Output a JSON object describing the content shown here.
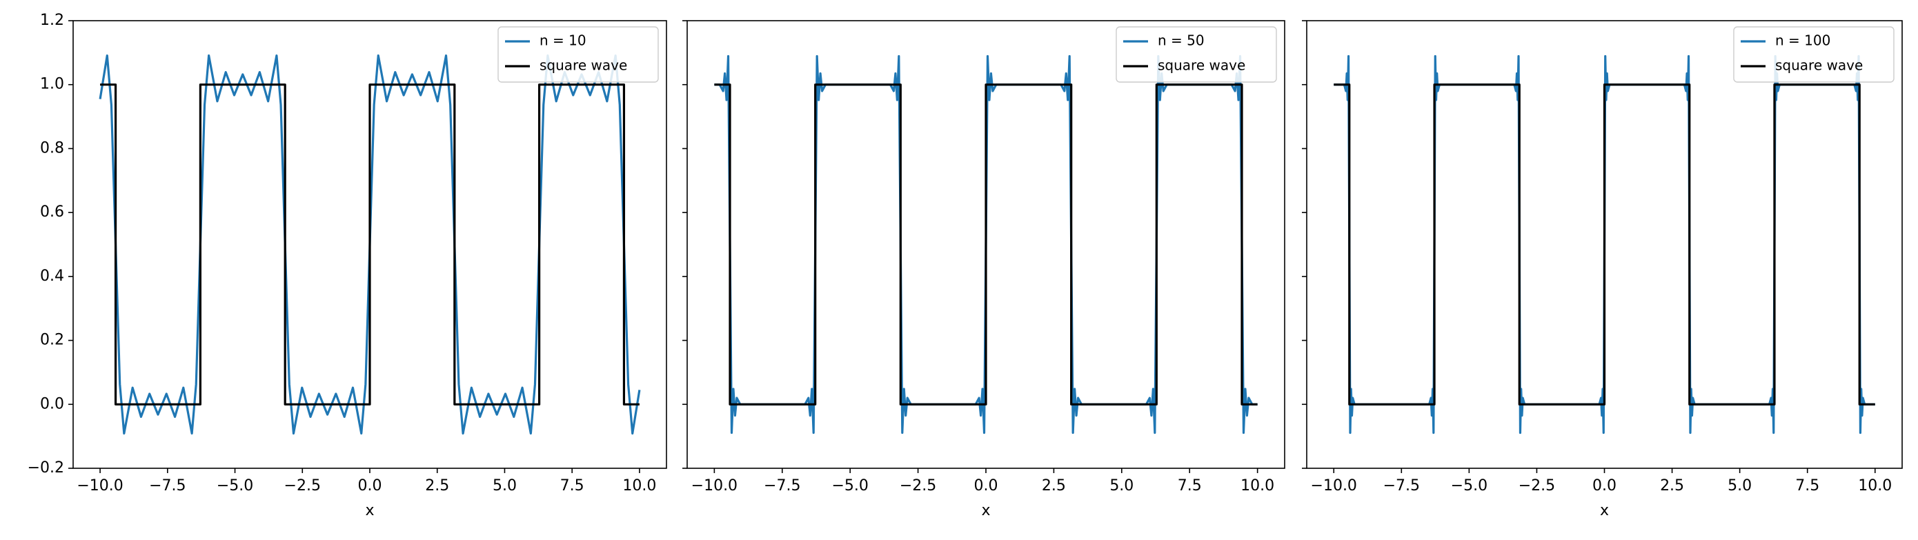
{
  "chart_data": [
    {
      "type": "line",
      "xlabel": "x",
      "xlim": [
        -11,
        11
      ],
      "ylim": [
        -0.2,
        1.2
      ],
      "xticks": [
        {
          "value": -10,
          "label": "−10.0"
        },
        {
          "value": -7.5,
          "label": "−7.5"
        },
        {
          "value": -5,
          "label": "−5.0"
        },
        {
          "value": -2.5,
          "label": "−2.5"
        },
        {
          "value": 0,
          "label": "0.0"
        },
        2.5,
        {
          "value": 5,
          "label": "5.0"
        },
        7.5,
        {
          "value": 10,
          "label": "10.0"
        }
      ],
      "yticks": [
        {
          "value": -0.2,
          "label": "−0.2"
        },
        {
          "value": 0,
          "label": "0.0"
        },
        0.2,
        0.4,
        0.6,
        0.8,
        {
          "value": 1,
          "label": "1.0"
        },
        1.2
      ],
      "ytick_labels": true,
      "legend": "upper right",
      "series": [
        {
          "name": "n = 10",
          "color": "#1f77b4",
          "x": [
            -10,
            -9.739,
            -9.582,
            -9.425,
            -9.268,
            -9.111,
            -8.796,
            -8.482,
            -8.168,
            -7.854,
            -7.54,
            -7.226,
            -6.912,
            -6.597,
            -6.44,
            -6.283,
            -6.126,
            -5.969,
            -5.655,
            -5.341,
            -5.027,
            -4.712,
            -4.398,
            -4.084,
            -3.77,
            -3.456,
            -3.299,
            -3.142,
            -2.985,
            -2.827,
            -2.513,
            -2.199,
            -1.885,
            -1.571,
            -1.257,
            -0.942,
            -0.628,
            -0.314,
            -0.157,
            0,
            0.157,
            0.314,
            0.628,
            0.942,
            1.257,
            1.571,
            1.885,
            2.199,
            2.513,
            2.827,
            2.985,
            3.142,
            3.299,
            3.456,
            3.77,
            4.084,
            4.398,
            4.712,
            5.027,
            5.341,
            5.655,
            5.969,
            6.126,
            6.283,
            6.44,
            6.597,
            6.912,
            7.226,
            7.54,
            7.854,
            8.168,
            8.482,
            8.796,
            9.111,
            9.268,
            9.425,
            9.582,
            9.739,
            10
          ],
          "values": [
            0.955,
            1.091,
            0.937,
            0.5,
            0.063,
            -0.091,
            0.052,
            -0.039,
            0.033,
            -0.032,
            0.033,
            -0.039,
            0.052,
            -0.091,
            0.063,
            0.5,
            0.937,
            1.091,
            0.948,
            1.039,
            0.967,
            1.032,
            0.967,
            1.039,
            0.948,
            1.091,
            0.937,
            0.5,
            0.063,
            -0.091,
            0.052,
            -0.039,
            0.033,
            -0.032,
            0.033,
            -0.039,
            0.052,
            -0.091,
            0.063,
            0.5,
            0.937,
            1.091,
            0.948,
            1.039,
            0.967,
            1.032,
            0.967,
            1.039,
            0.948,
            1.091,
            0.937,
            0.5,
            0.063,
            -0.091,
            0.052,
            -0.039,
            0.033,
            -0.032,
            0.033,
            -0.039,
            0.052,
            -0.091,
            0.063,
            0.5,
            0.937,
            1.091,
            0.948,
            1.039,
            0.967,
            1.032,
            0.967,
            1.039,
            0.948,
            1.091,
            0.937,
            0.5,
            0.063,
            -0.091,
            0.045
          ]
        },
        {
          "name": "square wave",
          "color": "#000000",
          "x": [
            -10,
            -9.425,
            -9.425,
            -6.283,
            -6.283,
            -3.142,
            -3.142,
            0,
            0,
            3.142,
            3.142,
            6.283,
            6.283,
            9.425,
            9.425,
            10
          ],
          "values": [
            1,
            1,
            0,
            0,
            1,
            1,
            0,
            0,
            1,
            1,
            0,
            0,
            1,
            1,
            0,
            0
          ]
        }
      ]
    },
    {
      "type": "line",
      "xlabel": "x",
      "xlim": [
        -11,
        11
      ],
      "ylim": [
        -0.2,
        1.2
      ],
      "xticks": [
        {
          "value": -10,
          "label": "−10.0"
        },
        {
          "value": -7.5,
          "label": "−7.5"
        },
        {
          "value": -5,
          "label": "−5.0"
        },
        {
          "value": -2.5,
          "label": "−2.5"
        },
        {
          "value": 0,
          "label": "0.0"
        },
        2.5,
        {
          "value": 5,
          "label": "5.0"
        },
        7.5,
        {
          "value": 10,
          "label": "10.0"
        }
      ],
      "yticks": [
        -0.2,
        0,
        0.2,
        0.4,
        0.6,
        0.8,
        1,
        1.2
      ],
      "ytick_labels": false,
      "legend": "upper right",
      "series": [
        {
          "name": "n = 50",
          "color": "#1f77b4",
          "x": [
            -10,
            -9.802,
            -9.676,
            -9.613,
            -9.551,
            -9.488,
            -9.425,
            -9.362,
            -9.299,
            -9.237,
            -9.174,
            -9.048,
            -6.66,
            -6.534,
            -6.471,
            -6.409,
            -6.346,
            -6.283,
            -6.22,
            -6.157,
            -6.095,
            -6.032,
            -5.906,
            -3.519,
            -3.393,
            -3.33,
            -3.268,
            -3.205,
            -3.142,
            -3.079,
            -3.016,
            -2.954,
            -2.891,
            -2.765,
            -0.377,
            -0.251,
            -0.188,
            -0.126,
            -0.063,
            0,
            0.063,
            0.126,
            0.188,
            0.251,
            0.377,
            2.765,
            2.891,
            2.954,
            3.016,
            3.079,
            3.142,
            3.205,
            3.268,
            3.33,
            3.393,
            3.519,
            5.906,
            6.032,
            6.095,
            6.157,
            6.22,
            6.283,
            6.346,
            6.409,
            6.471,
            6.534,
            6.66,
            9.048,
            9.174,
            9.237,
            9.299,
            9.362,
            9.425,
            9.488,
            9.551,
            9.613,
            9.676,
            9.802,
            10
          ],
          "values": [
            1,
            1,
            0.98,
            1.035,
            0.952,
            1.089,
            0.5,
            -0.089,
            0.048,
            -0.035,
            0.02,
            0,
            0,
            0.02,
            -0.035,
            0.048,
            -0.089,
            0.5,
            1.089,
            0.952,
            1.035,
            0.98,
            1,
            1,
            0.98,
            1.035,
            0.952,
            1.089,
            0.5,
            -0.089,
            0.048,
            -0.035,
            0.02,
            0,
            0,
            0.02,
            -0.035,
            0.048,
            -0.089,
            0.5,
            1.089,
            0.952,
            1.035,
            0.98,
            1,
            1,
            0.98,
            1.035,
            0.952,
            1.089,
            0.5,
            -0.089,
            0.048,
            -0.035,
            0.02,
            0,
            0,
            0.02,
            -0.035,
            0.048,
            -0.089,
            0.5,
            1.089,
            0.952,
            1.035,
            0.98,
            1,
            1,
            0.98,
            1.035,
            0.952,
            1.089,
            0.5,
            -0.089,
            0.048,
            -0.035,
            0.02,
            0,
            0
          ]
        },
        {
          "name": "square wave",
          "color": "#000000",
          "x": [
            -10,
            -9.425,
            -9.425,
            -6.283,
            -6.283,
            -3.142,
            -3.142,
            0,
            0,
            3.142,
            3.142,
            6.283,
            6.283,
            9.425,
            9.425,
            10
          ],
          "values": [
            1,
            1,
            0,
            0,
            1,
            1,
            0,
            0,
            1,
            1,
            0,
            0,
            1,
            1,
            0,
            0
          ]
        }
      ]
    },
    {
      "type": "line",
      "xlabel": "x",
      "xlim": [
        -11,
        11
      ],
      "ylim": [
        -0.2,
        1.2
      ],
      "xticks": [
        {
          "value": -10,
          "label": "−10.0"
        },
        {
          "value": -7.5,
          "label": "−7.5"
        },
        {
          "value": -5,
          "label": "−5.0"
        },
        {
          "value": -2.5,
          "label": "−2.5"
        },
        {
          "value": 0,
          "label": "0.0"
        },
        2.5,
        {
          "value": 5,
          "label": "5.0"
        },
        7.5,
        {
          "value": 10,
          "label": "10.0"
        }
      ],
      "yticks": [
        -0.2,
        0,
        0.2,
        0.4,
        0.6,
        0.8,
        1,
        1.2
      ],
      "ytick_labels": false,
      "legend": "upper right",
      "series": [
        {
          "name": "n = 100",
          "color": "#1f77b4",
          "x": [
            -10,
            -9.613,
            -9.551,
            -9.519,
            -9.488,
            -9.456,
            -9.425,
            -9.394,
            -9.362,
            -9.331,
            -9.299,
            -9.237,
            -6.471,
            -6.409,
            -6.377,
            -6.346,
            -6.314,
            -6.283,
            -6.252,
            -6.22,
            -6.189,
            -6.157,
            -6.095,
            -3.33,
            -3.268,
            -3.236,
            -3.205,
            -3.173,
            -3.142,
            -3.111,
            -3.079,
            -3.048,
            -3.016,
            -2.954,
            -0.188,
            -0.126,
            -0.094,
            -0.063,
            -0.031,
            0,
            0.031,
            0.063,
            0.094,
            0.126,
            0.188,
            2.954,
            3.016,
            3.048,
            3.079,
            3.111,
            3.142,
            3.173,
            3.205,
            3.236,
            3.268,
            3.33,
            6.095,
            6.157,
            6.189,
            6.22,
            6.252,
            6.283,
            6.314,
            6.346,
            6.377,
            6.409,
            6.471,
            9.237,
            9.299,
            9.331,
            9.362,
            9.394,
            9.425,
            9.456,
            9.488,
            9.519,
            9.551,
            9.613,
            10
          ],
          "values": [
            1,
            1,
            0.98,
            1.035,
            0.952,
            1.089,
            0.5,
            -0.089,
            0.048,
            -0.035,
            0.02,
            0,
            0,
            0.02,
            -0.035,
            0.048,
            -0.089,
            0.5,
            1.089,
            0.952,
            1.035,
            0.98,
            1,
            1,
            0.98,
            1.035,
            0.952,
            1.089,
            0.5,
            -0.089,
            0.048,
            -0.035,
            0.02,
            0,
            0,
            0.02,
            -0.035,
            0.048,
            -0.089,
            0.5,
            1.089,
            0.952,
            1.035,
            0.98,
            1,
            1,
            0.98,
            1.035,
            0.952,
            1.089,
            0.5,
            -0.089,
            0.048,
            -0.035,
            0.02,
            0,
            0,
            0.02,
            -0.035,
            0.048,
            -0.089,
            0.5,
            1.089,
            0.952,
            1.035,
            0.98,
            1,
            1,
            0.98,
            1.035,
            0.952,
            1.089,
            0.5,
            -0.089,
            0.048,
            -0.035,
            0.02,
            0,
            0
          ]
        },
        {
          "name": "square wave",
          "color": "#000000",
          "x": [
            -10,
            -9.425,
            -9.425,
            -6.283,
            -6.283,
            -3.142,
            -3.142,
            0,
            0,
            3.142,
            3.142,
            6.283,
            6.283,
            9.425,
            9.425,
            10
          ],
          "values": [
            1,
            1,
            0,
            0,
            1,
            1,
            0,
            0,
            1,
            1,
            0,
            0,
            1,
            1,
            0,
            0
          ]
        }
      ]
    }
  ]
}
